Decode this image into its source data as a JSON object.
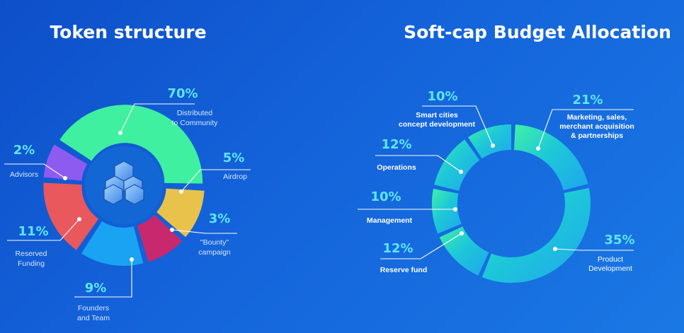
{
  "chart_data": [
    {
      "type": "pie",
      "title": "Token structure",
      "categories": [
        "Distributed to Community",
        "Airdrop",
        "\"Bounty\" campaign",
        "Founders and Team",
        "Reserved Funding",
        "Advisors"
      ],
      "values": [
        70,
        5,
        3,
        9,
        11,
        2
      ],
      "value_labels": [
        "70%",
        "5%",
        "3%",
        "9%",
        "11%",
        "2%"
      ],
      "label_lines": [
        [
          "Distributed",
          "to Community"
        ],
        [
          "Airdrop"
        ],
        [
          "\"Bounty\"",
          "campaign"
        ],
        [
          "Founders",
          "and Team"
        ],
        [
          "Reserved",
          "Funding"
        ],
        [
          "Advisors"
        ]
      ],
      "colors": [
        "#3ff0a0",
        "#e8c24b",
        "#c8286e",
        "#1aa3f2",
        "#e9585c",
        "#8e5bf0"
      ],
      "donut": true,
      "center_icon": "stacked-cubes-logo"
    },
    {
      "type": "pie",
      "title": "Soft-cap Budget Allocation",
      "categories": [
        "Marketing, sales, merchant acquisition & partnerships",
        "Product Development",
        "Reserve fund",
        "Management",
        "Operations",
        "Smart cities concept development"
      ],
      "values": [
        21,
        35,
        12,
        10,
        12,
        10
      ],
      "value_labels": [
        "21%",
        "35%",
        "12%",
        "10%",
        "12%",
        "10%"
      ],
      "label_lines": [
        [
          "Marketing, sales,",
          "merchant acquisition",
          "& partnerships"
        ],
        [
          "Product",
          "Development"
        ],
        [
          "Reserve fund"
        ],
        [
          "Management"
        ],
        [
          "Operations"
        ],
        [
          "Smart cities",
          "concept development"
        ]
      ],
      "gradient": [
        "#40f2a4",
        "#1ec8d8",
        "#1ea6ec"
      ],
      "donut": true
    }
  ]
}
